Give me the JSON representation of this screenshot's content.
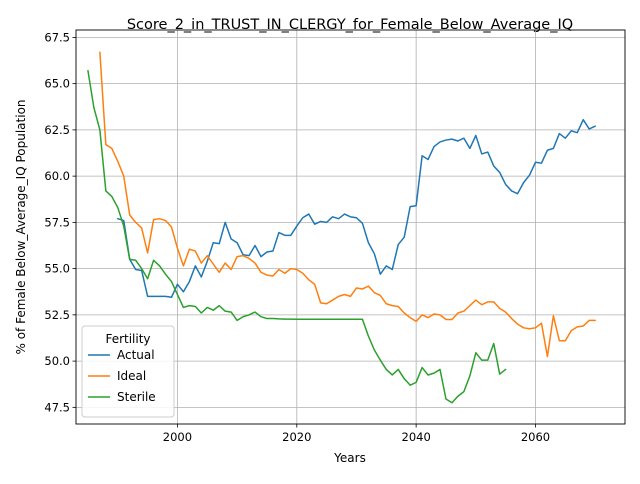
{
  "chart_data": {
    "type": "line",
    "title": "Score_2_in_TRUST_IN_CLERGY_for_Female_Below_Average_IQ",
    "xlabel": "Years",
    "ylabel": "% of Female Below_Average_IQ Population",
    "xlim": [
      1983,
      2075
    ],
    "ylim": [
      46.6,
      67.9
    ],
    "x_ticks": [
      2000,
      2020,
      2040,
      2060
    ],
    "y_ticks": [
      47.5,
      50.0,
      52.5,
      55.0,
      57.5,
      60.0,
      62.5,
      65.0,
      67.5
    ],
    "x_tick_labels": [
      "2000",
      "2020",
      "2040",
      "2060"
    ],
    "y_tick_labels": [
      "47.5",
      "50.0",
      "52.5",
      "55.0",
      "57.5",
      "60.0",
      "62.5",
      "65.0",
      "67.5"
    ],
    "grid": true,
    "legend": {
      "title": "Fertility",
      "placement": "lower-left"
    },
    "series": [
      {
        "name": "Actual",
        "color": "#1f77b4",
        "points": [
          [
            1990,
            57.7
          ],
          [
            1991,
            57.6
          ],
          [
            1992,
            55.5
          ],
          [
            1993,
            54.95
          ],
          [
            1994,
            54.9
          ],
          [
            1995,
            53.5
          ],
          [
            1996,
            53.5
          ],
          [
            1997,
            53.5
          ],
          [
            1998,
            53.5
          ],
          [
            1999,
            53.45
          ],
          [
            2000,
            54.15
          ],
          [
            2001,
            53.75
          ],
          [
            2002,
            54.3
          ],
          [
            2003,
            55.15
          ],
          [
            2004,
            54.55
          ],
          [
            2005,
            55.4
          ],
          [
            2006,
            56.4
          ],
          [
            2007,
            56.35
          ],
          [
            2008,
            57.5
          ],
          [
            2009,
            56.6
          ],
          [
            2010,
            56.4
          ],
          [
            2011,
            55.75
          ],
          [
            2012,
            55.7
          ],
          [
            2013,
            56.25
          ],
          [
            2014,
            55.65
          ],
          [
            2015,
            55.9
          ],
          [
            2016,
            55.95
          ],
          [
            2017,
            56.95
          ],
          [
            2018,
            56.8
          ],
          [
            2019,
            56.8
          ],
          [
            2020,
            57.3
          ],
          [
            2021,
            57.75
          ],
          [
            2022,
            57.95
          ],
          [
            2023,
            57.4
          ],
          [
            2024,
            57.55
          ],
          [
            2025,
            57.5
          ],
          [
            2026,
            57.8
          ],
          [
            2027,
            57.7
          ],
          [
            2028,
            57.95
          ],
          [
            2029,
            57.8
          ],
          [
            2030,
            57.75
          ],
          [
            2031,
            57.45
          ],
          [
            2032,
            56.4
          ],
          [
            2033,
            55.8
          ],
          [
            2034,
            54.7
          ],
          [
            2035,
            55.15
          ],
          [
            2036,
            54.95
          ],
          [
            2037,
            56.3
          ],
          [
            2038,
            56.7
          ],
          [
            2039,
            58.35
          ],
          [
            2040,
            58.4
          ],
          [
            2041,
            61.1
          ],
          [
            2042,
            60.9
          ],
          [
            2043,
            61.6
          ],
          [
            2044,
            61.85
          ],
          [
            2045,
            61.95
          ],
          [
            2046,
            62.0
          ],
          [
            2047,
            61.9
          ],
          [
            2048,
            62.05
          ],
          [
            2049,
            61.5
          ],
          [
            2050,
            62.2
          ],
          [
            2051,
            61.2
          ],
          [
            2052,
            61.3
          ],
          [
            2053,
            60.55
          ],
          [
            2054,
            60.2
          ],
          [
            2055,
            59.55
          ],
          [
            2056,
            59.2
          ],
          [
            2057,
            59.05
          ],
          [
            2058,
            59.65
          ],
          [
            2059,
            60.05
          ],
          [
            2060,
            60.75
          ],
          [
            2061,
            60.7
          ],
          [
            2062,
            61.4
          ],
          [
            2063,
            61.5
          ],
          [
            2064,
            62.3
          ],
          [
            2065,
            62.05
          ],
          [
            2066,
            62.45
          ],
          [
            2067,
            62.35
          ],
          [
            2068,
            63.05
          ],
          [
            2069,
            62.55
          ],
          [
            2070,
            62.7
          ]
        ]
      },
      {
        "name": "Ideal",
        "color": "#ff7f0e",
        "points": [
          [
            1987,
            66.7
          ],
          [
            1988,
            61.7
          ],
          [
            1989,
            61.5
          ],
          [
            1990,
            60.8
          ],
          [
            1991,
            60.0
          ],
          [
            1992,
            57.9
          ],
          [
            1993,
            57.5
          ],
          [
            1994,
            57.2
          ],
          [
            1995,
            55.85
          ],
          [
            1996,
            57.65
          ],
          [
            1997,
            57.7
          ],
          [
            1998,
            57.6
          ],
          [
            1999,
            57.25
          ],
          [
            2000,
            56.1
          ],
          [
            2001,
            55.15
          ],
          [
            2002,
            56.05
          ],
          [
            2003,
            55.95
          ],
          [
            2004,
            55.3
          ],
          [
            2005,
            55.7
          ],
          [
            2006,
            55.25
          ],
          [
            2007,
            54.8
          ],
          [
            2008,
            55.3
          ],
          [
            2009,
            54.95
          ],
          [
            2010,
            55.65
          ],
          [
            2011,
            55.7
          ],
          [
            2012,
            55.55
          ],
          [
            2013,
            55.3
          ],
          [
            2014,
            54.8
          ],
          [
            2015,
            54.65
          ],
          [
            2016,
            54.6
          ],
          [
            2017,
            54.95
          ],
          [
            2018,
            54.75
          ],
          [
            2019,
            55.0
          ],
          [
            2020,
            54.95
          ],
          [
            2021,
            54.75
          ],
          [
            2022,
            54.4
          ],
          [
            2023,
            54.15
          ],
          [
            2024,
            53.15
          ],
          [
            2025,
            53.1
          ],
          [
            2026,
            53.3
          ],
          [
            2027,
            53.5
          ],
          [
            2028,
            53.6
          ],
          [
            2029,
            53.5
          ],
          [
            2030,
            53.95
          ],
          [
            2031,
            53.9
          ],
          [
            2032,
            54.05
          ],
          [
            2033,
            53.7
          ],
          [
            2034,
            53.55
          ],
          [
            2035,
            53.1
          ],
          [
            2036,
            53.0
          ],
          [
            2037,
            52.95
          ],
          [
            2038,
            52.6
          ],
          [
            2039,
            52.35
          ],
          [
            2040,
            52.15
          ],
          [
            2041,
            52.5
          ],
          [
            2042,
            52.35
          ],
          [
            2043,
            52.55
          ],
          [
            2044,
            52.5
          ],
          [
            2045,
            52.25
          ],
          [
            2046,
            52.25
          ],
          [
            2047,
            52.6
          ],
          [
            2048,
            52.7
          ],
          [
            2049,
            53.0
          ],
          [
            2050,
            53.3
          ],
          [
            2051,
            53.05
          ],
          [
            2052,
            53.2
          ],
          [
            2053,
            53.2
          ],
          [
            2054,
            52.85
          ],
          [
            2055,
            52.65
          ],
          [
            2056,
            52.3
          ],
          [
            2057,
            52.0
          ],
          [
            2058,
            51.8
          ],
          [
            2059,
            51.75
          ],
          [
            2060,
            51.8
          ],
          [
            2061,
            52.05
          ],
          [
            2062,
            50.25
          ],
          [
            2063,
            52.45
          ],
          [
            2064,
            51.1
          ],
          [
            2065,
            51.1
          ],
          [
            2066,
            51.65
          ],
          [
            2067,
            51.85
          ],
          [
            2068,
            51.9
          ],
          [
            2069,
            52.2
          ],
          [
            2070,
            52.2
          ]
        ]
      },
      {
        "name": "Sterile",
        "color": "#2ca02c",
        "points": [
          [
            1985,
            65.7
          ],
          [
            1986,
            63.7
          ],
          [
            1987,
            62.5
          ],
          [
            1988,
            59.2
          ],
          [
            1989,
            58.9
          ],
          [
            1990,
            58.3
          ],
          [
            1991,
            57.3
          ],
          [
            1992,
            55.5
          ],
          [
            1993,
            55.45
          ],
          [
            1994,
            55.0
          ],
          [
            1995,
            54.45
          ],
          [
            1996,
            55.45
          ],
          [
            1997,
            55.15
          ],
          [
            1998,
            54.7
          ],
          [
            1999,
            54.3
          ],
          [
            2000,
            53.6
          ],
          [
            2001,
            52.9
          ],
          [
            2002,
            53.0
          ],
          [
            2003,
            52.95
          ],
          [
            2004,
            52.6
          ],
          [
            2005,
            52.9
          ],
          [
            2006,
            52.75
          ],
          [
            2007,
            53.0
          ],
          [
            2008,
            52.7
          ],
          [
            2009,
            52.65
          ],
          [
            2010,
            52.2
          ],
          [
            2011,
            52.4
          ],
          [
            2012,
            52.5
          ],
          [
            2013,
            52.65
          ],
          [
            2014,
            52.4
          ],
          [
            2015,
            52.3
          ],
          [
            2016,
            52.3
          ],
          [
            2017,
            52.28
          ],
          [
            2018,
            52.27
          ],
          [
            2019,
            52.27
          ],
          [
            2020,
            52.26
          ],
          [
            2021,
            52.26
          ],
          [
            2022,
            52.26
          ],
          [
            2023,
            52.26
          ],
          [
            2024,
            52.26
          ],
          [
            2025,
            52.26
          ],
          [
            2026,
            52.26
          ],
          [
            2027,
            52.26
          ],
          [
            2028,
            52.26
          ],
          [
            2029,
            52.26
          ],
          [
            2030,
            52.26
          ],
          [
            2031,
            52.26
          ],
          [
            2032,
            51.35
          ],
          [
            2033,
            50.6
          ],
          [
            2034,
            50.05
          ],
          [
            2035,
            49.55
          ],
          [
            2036,
            49.25
          ],
          [
            2037,
            49.55
          ],
          [
            2038,
            49.05
          ],
          [
            2039,
            48.7
          ],
          [
            2040,
            48.85
          ],
          [
            2041,
            49.65
          ],
          [
            2042,
            49.25
          ],
          [
            2043,
            49.35
          ],
          [
            2044,
            49.55
          ],
          [
            2045,
            47.95
          ],
          [
            2046,
            47.75
          ],
          [
            2047,
            48.1
          ],
          [
            2048,
            48.35
          ],
          [
            2049,
            49.2
          ],
          [
            2050,
            50.45
          ],
          [
            2051,
            50.05
          ],
          [
            2052,
            50.05
          ],
          [
            2053,
            50.95
          ],
          [
            2054,
            49.3
          ],
          [
            2055,
            49.55
          ]
        ]
      }
    ]
  }
}
